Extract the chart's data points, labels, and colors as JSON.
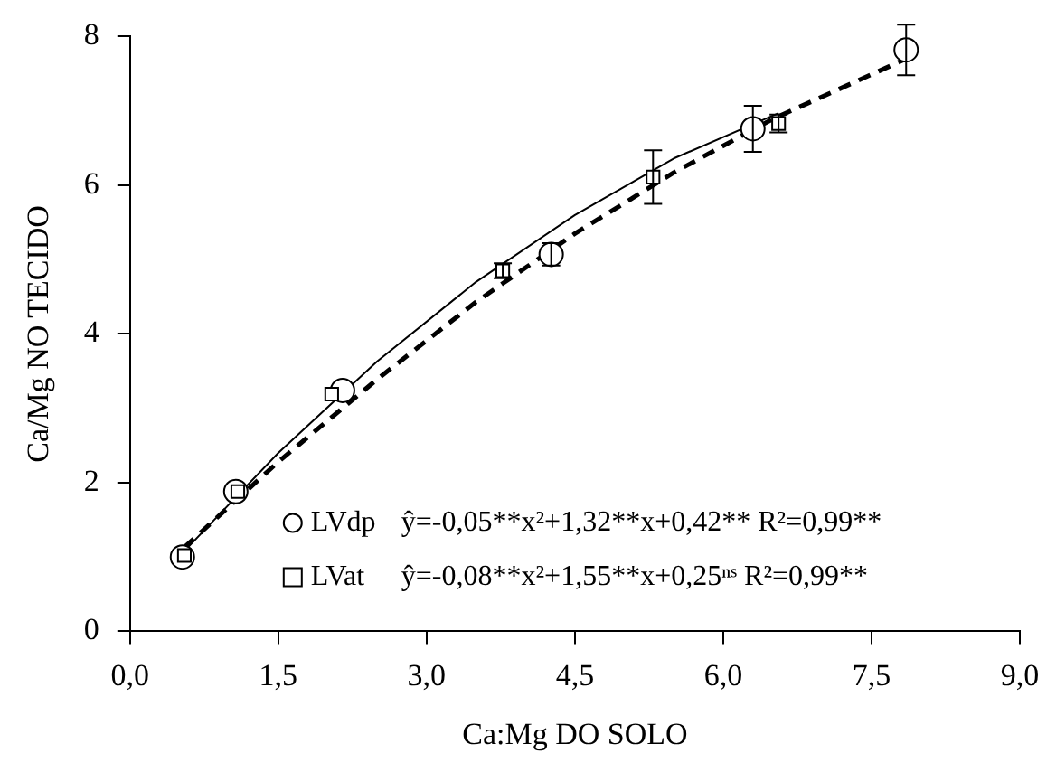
{
  "chart_data": {
    "type": "scatter",
    "xlabel": "Ca:Mg DO SOLO",
    "ylabel": "Ca/Mg NO TECIDO",
    "xlim": [
      0,
      9
    ],
    "ylim": [
      0,
      8
    ],
    "xticks": [
      {
        "value": 0,
        "label": "0,0"
      },
      {
        "value": 1.5,
        "label": "1,5"
      },
      {
        "value": 3,
        "label": "3,0"
      },
      {
        "value": 4.5,
        "label": "4,5"
      },
      {
        "value": 6,
        "label": "6,0"
      },
      {
        "value": 7.5,
        "label": "7,5"
      },
      {
        "value": 9,
        "label": "9,0"
      }
    ],
    "yticks": [
      0,
      2,
      4,
      6,
      8
    ],
    "grid": false,
    "legend": "bottom",
    "series": [
      {
        "name": "LVdp",
        "marker": "circle",
        "color": "#000000",
        "x": [
          0.53,
          1.07,
          2.15,
          4.26,
          6.3,
          7.85
        ],
        "values": [
          1.0,
          1.88,
          3.24,
          5.07,
          6.76,
          7.82
        ],
        "errors": [
          null,
          null,
          null,
          0.15,
          0.31,
          0.34
        ]
      },
      {
        "name": "LVat",
        "marker": "square",
        "color": "#000000",
        "x": [
          0.55,
          1.09,
          2.04,
          3.77,
          5.29,
          6.56
        ],
        "values": [
          1.02,
          1.88,
          3.19,
          4.85,
          6.11,
          6.83
        ],
        "errors": [
          null,
          null,
          null,
          0.1,
          0.36,
          0.12
        ]
      },
      {
        "type": "line",
        "color": "#000000",
        "line_style": "dashed",
        "marker": "none",
        "x": [
          0.55,
          1.5,
          2.5,
          3.5,
          4.5,
          5.5,
          6.5,
          7.85
        ],
        "values": [
          1.13,
          2.28,
          3.39,
          4.43,
          5.35,
          6.17,
          6.89,
          7.7
        ]
      },
      {
        "type": "line",
        "color": "#000000",
        "line_style": "solid",
        "marker": "none",
        "x": [
          0.55,
          1.5,
          2.5,
          3.5,
          4.5,
          5.5,
          6.56
        ],
        "values": [
          1.08,
          2.4,
          3.63,
          4.7,
          5.6,
          6.36,
          6.97
        ]
      }
    ],
    "annotations": [
      "ŷ=-0,05**x²+1,32**x+0,42** R²=0,99**",
      "ŷ=-0,08**x²+1,55**x+0,25ⁿˢ R²=0,99**"
    ]
  }
}
